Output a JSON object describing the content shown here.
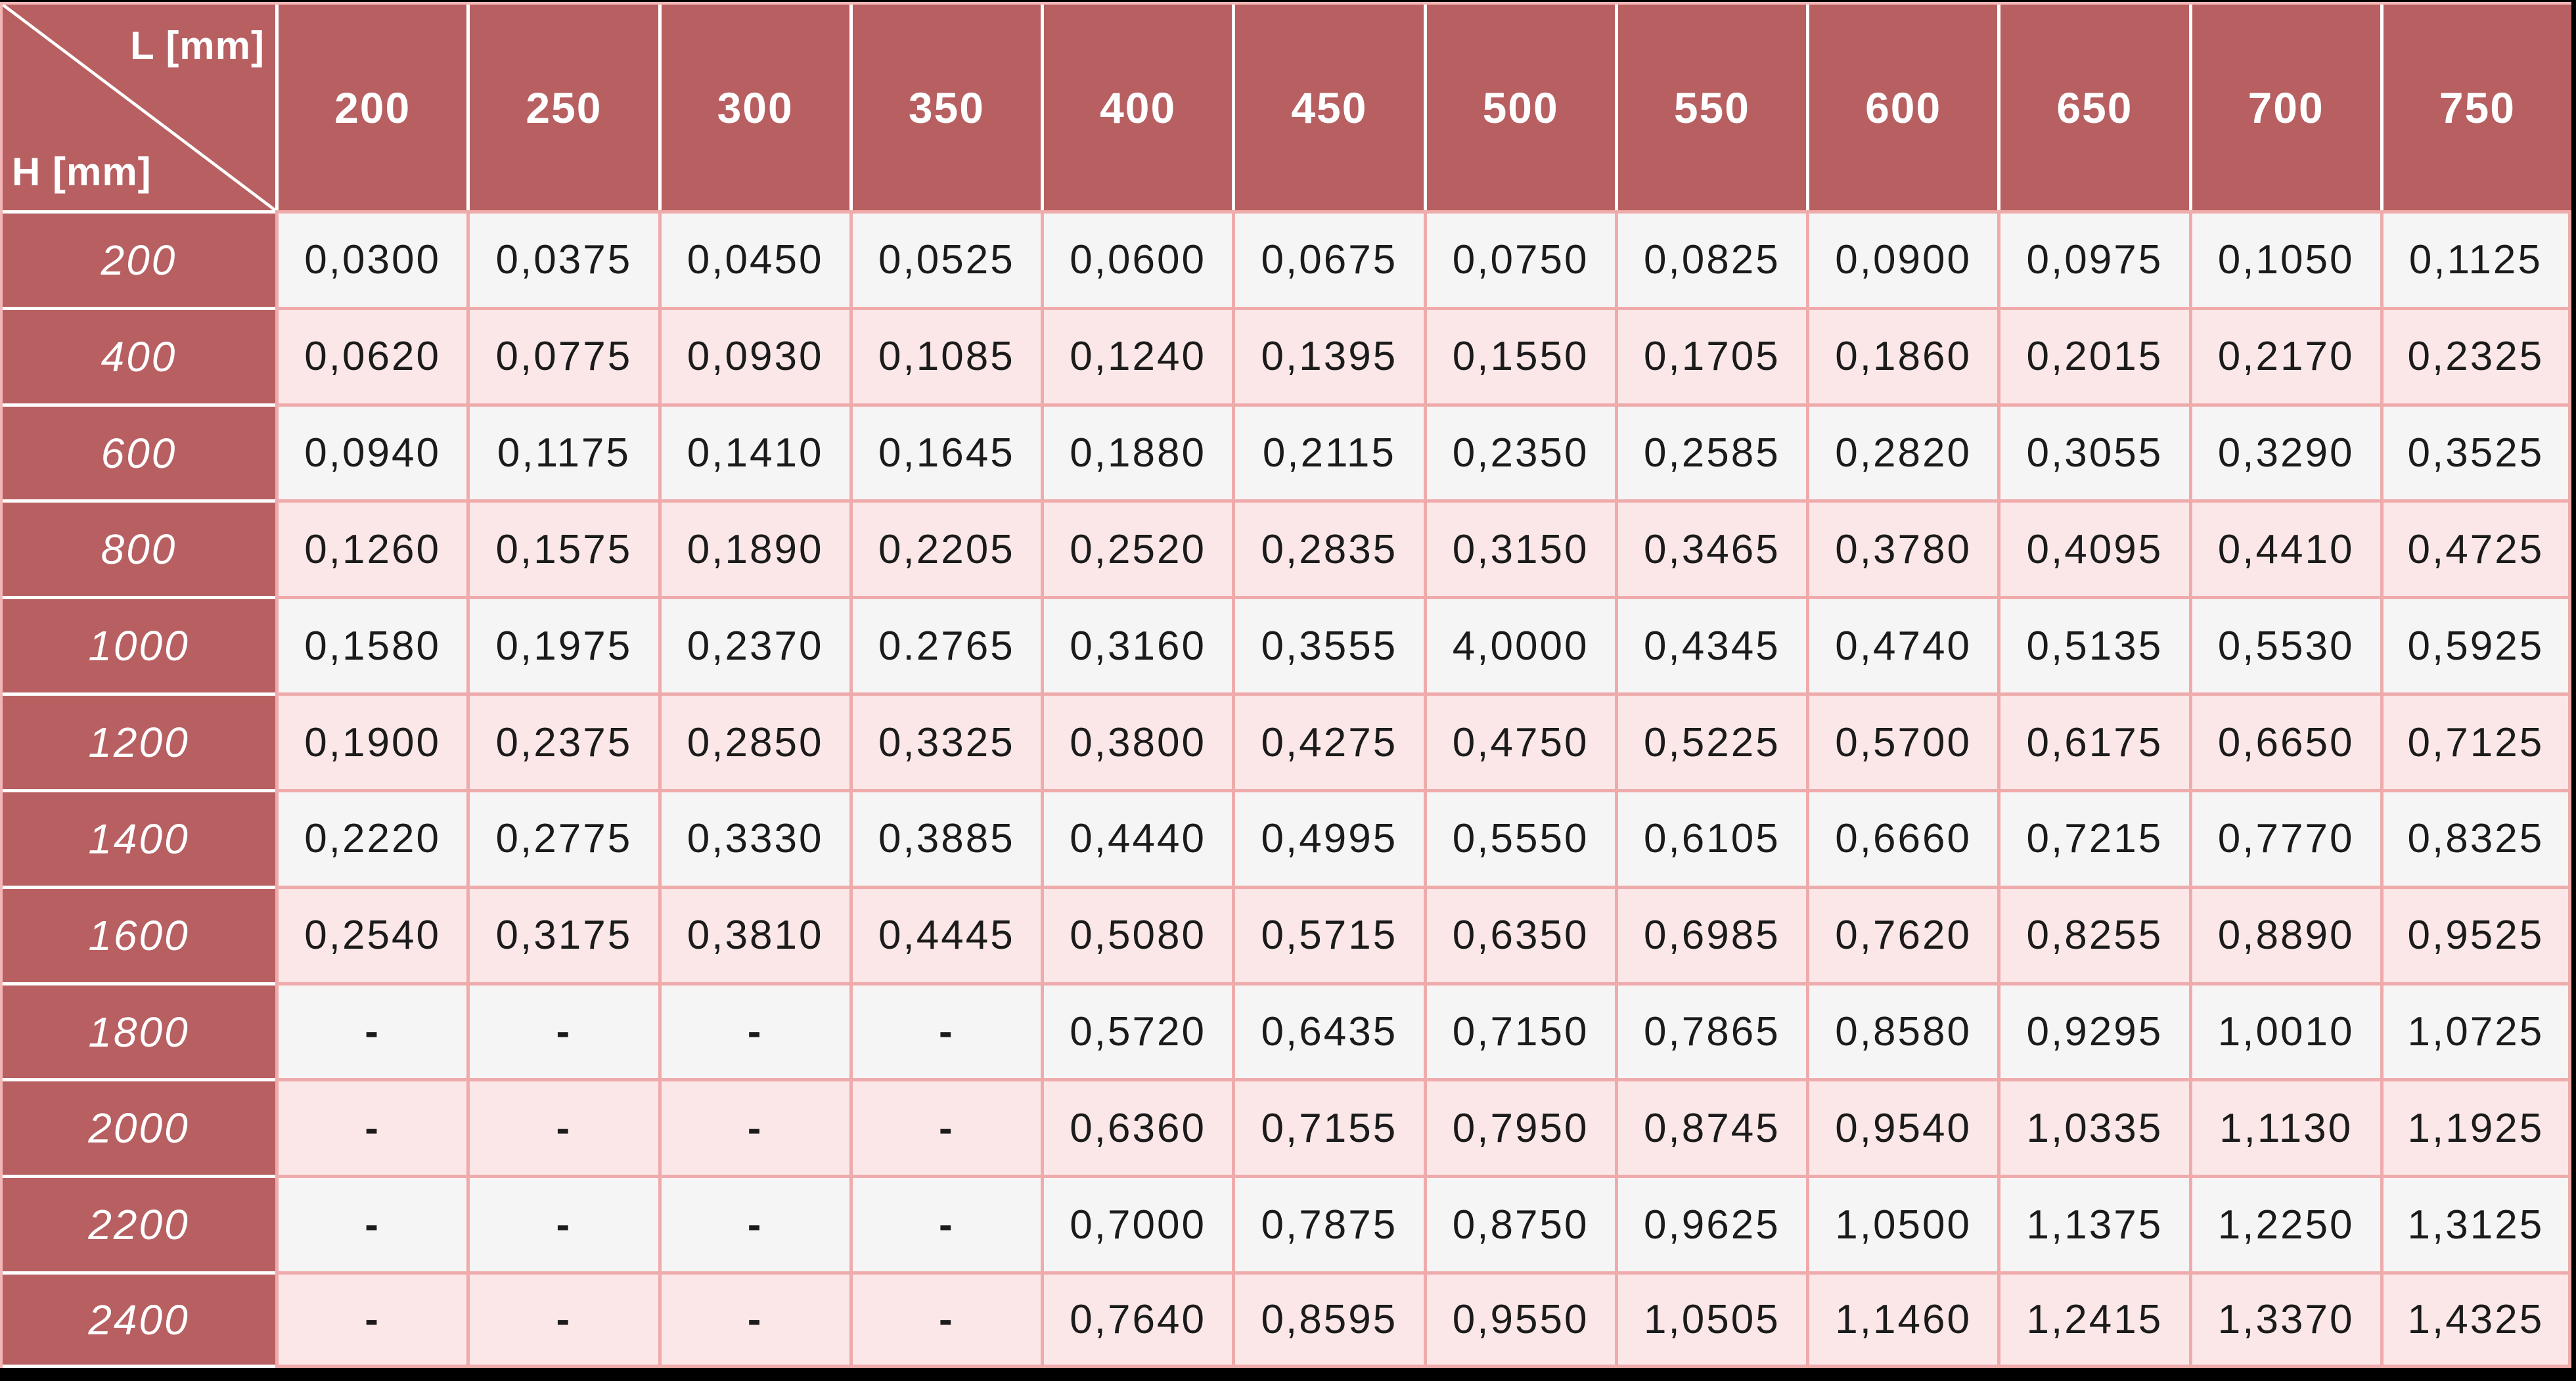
{
  "table": {
    "corner": {
      "top_right_label": "L [mm]",
      "bottom_left_label": "H [mm]"
    },
    "columns": [
      "200",
      "250",
      "300",
      "350",
      "400",
      "450",
      "500",
      "550",
      "600",
      "650",
      "700",
      "750"
    ],
    "rows": [
      {
        "h": "200",
        "values": [
          "0,0300",
          "0,0375",
          "0,0450",
          "0,0525",
          "0,0600",
          "0,0675",
          "0,0750",
          "0,0825",
          "0,0900",
          "0,0975",
          "0,1050",
          "0,1125"
        ]
      },
      {
        "h": "400",
        "values": [
          "0,0620",
          "0,0775",
          "0,0930",
          "0,1085",
          "0,1240",
          "0,1395",
          "0,1550",
          "0,1705",
          "0,1860",
          "0,2015",
          "0,2170",
          "0,2325"
        ]
      },
      {
        "h": "600",
        "values": [
          "0,0940",
          "0,1175",
          "0,1410",
          "0,1645",
          "0,1880",
          "0,2115",
          "0,2350",
          "0,2585",
          "0,2820",
          "0,3055",
          "0,3290",
          "0,3525"
        ]
      },
      {
        "h": "800",
        "values": [
          "0,1260",
          "0,1575",
          "0,1890",
          "0,2205",
          "0,2520",
          "0,2835",
          "0,3150",
          "0,3465",
          "0,3780",
          "0,4095",
          "0,4410",
          "0,4725"
        ]
      },
      {
        "h": "1000",
        "values": [
          "0,1580",
          "0,1975",
          "0,2370",
          "0.2765",
          "0,3160",
          "0,3555",
          "4,0000",
          "0,4345",
          "0,4740",
          "0,5135",
          "0,5530",
          "0,5925"
        ]
      },
      {
        "h": "1200",
        "values": [
          "0,1900",
          "0,2375",
          "0,2850",
          "0,3325",
          "0,3800",
          "0,4275",
          "0,4750",
          "0,5225",
          "0,5700",
          "0,6175",
          "0,6650",
          "0,7125"
        ]
      },
      {
        "h": "1400",
        "values": [
          "0,2220",
          "0,2775",
          "0,3330",
          "0,3885",
          "0,4440",
          "0,4995",
          "0,5550",
          "0,6105",
          "0,6660",
          "0,7215",
          "0,7770",
          "0,8325"
        ]
      },
      {
        "h": "1600",
        "values": [
          "0,2540",
          "0,3175",
          "0,3810",
          "0,4445",
          "0,5080",
          "0,5715",
          "0,6350",
          "0,6985",
          "0,7620",
          "0,8255",
          "0,8890",
          "0,9525"
        ]
      },
      {
        "h": "1800",
        "values": [
          "-",
          "-",
          "-",
          "-",
          "0,5720",
          "0,6435",
          "0,7150",
          "0,7865",
          "0,8580",
          "0,9295",
          "1,0010",
          "1,0725"
        ]
      },
      {
        "h": "2000",
        "values": [
          "-",
          "-",
          "-",
          "-",
          "0,6360",
          "0,7155",
          "0,7950",
          "0,8745",
          "0,9540",
          "1,0335",
          "1,1130",
          "1,1925"
        ]
      },
      {
        "h": "2200",
        "values": [
          "-",
          "-",
          "-",
          "-",
          "0,7000",
          "0,7875",
          "0,8750",
          "0,9625",
          "1,0500",
          "1,1375",
          "1,2250",
          "1,3125"
        ]
      },
      {
        "h": "2400",
        "values": [
          "-",
          "-",
          "-",
          "-",
          "0,7640",
          "0,8595",
          "0,9550",
          "1,0505",
          "1,1460",
          "1,2415",
          "1,3370",
          "1,4325"
        ]
      }
    ],
    "colors": {
      "maroon": "#b75f61",
      "border_pink": "#efabab",
      "outer_pink": "#f3b6b6",
      "row_white": "#f6f5f5",
      "row_pink": "#fbe7e7",
      "text_dark": "#1b1b1b",
      "frame_black": "#000000",
      "header_text": "#ffffff"
    }
  }
}
